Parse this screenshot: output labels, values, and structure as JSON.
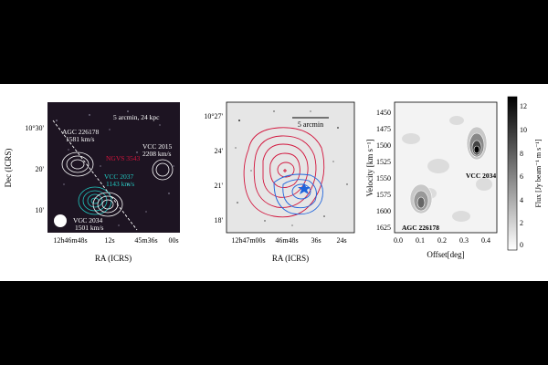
{
  "panel_a": {
    "scale_label": "5 arcmin, 24 kpc",
    "sources": [
      {
        "name": "AGC 226178",
        "vel": "1581 km/s",
        "color": "#ffffff"
      },
      {
        "name": "NGVS 3543",
        "vel": "",
        "color": "#d2143c"
      },
      {
        "name": "VCC 2037",
        "vel": "1143 km/s",
        "color": "#20c8c0"
      },
      {
        "name": "VCC 2015",
        "vel": "2208 km/s",
        "color": "#ffffff"
      },
      {
        "name": "VCC 2034",
        "vel": "1501 km/s",
        "color": "#ffffff"
      }
    ],
    "y_ticks": [
      "10°30'",
      "20'",
      "10'"
    ],
    "x_ticks": [
      "12h46m48s",
      "12s",
      "45m36s",
      "00s"
    ],
    "xlabel": "RA (ICRS)",
    "ylabel": "Dec (ICRS)"
  },
  "panel_b": {
    "scale_label": "5 arcmin",
    "y_ticks": [
      "10°27'",
      "24'",
      "21'",
      "18'"
    ],
    "x_ticks": [
      "12h47m00s",
      "46m48s",
      "36s",
      "24s"
    ],
    "xlabel": "RA (ICRS)",
    "colors": {
      "red": "#d2143c",
      "blue": "#1e64dc"
    }
  },
  "panel_c": {
    "ylabel": "Velocity [km s⁻¹]",
    "xlabel": "Offset[deg]",
    "y_ticks": [
      "1450",
      "1475",
      "1500",
      "1525",
      "1550",
      "1575",
      "1600",
      "1625"
    ],
    "x_ticks": [
      "0.0",
      "0.1",
      "0.2",
      "0.3",
      "0.4"
    ],
    "labels": [
      "AGC 226178",
      "VCC 2034"
    ],
    "colorbar_label": "Flux [Jy beam⁻¹ m s⁻¹]",
    "colorbar_ticks": [
      "12",
      "10",
      "8",
      "6",
      "4",
      "2",
      "0"
    ]
  }
}
